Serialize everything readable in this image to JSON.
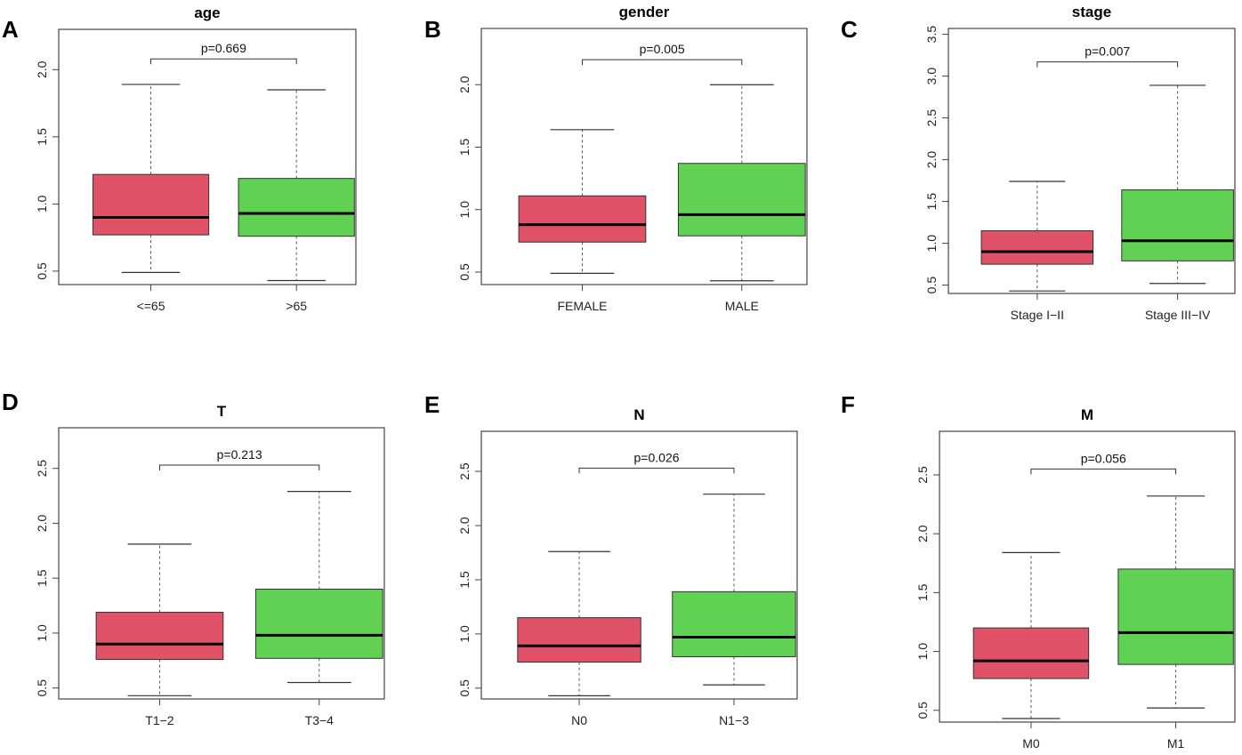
{
  "figure": {
    "colors": {
      "group1": "#df5268",
      "group2": "#61d153",
      "frame": "#444444",
      "median": "#000000",
      "whisker": "#555555"
    }
  },
  "chart_data": [
    {
      "panel": "A",
      "type": "box",
      "title": "age",
      "categories": [
        "<=65",
        ">65"
      ],
      "boxes": [
        {
          "min": 0.49,
          "q1": 0.77,
          "median": 0.9,
          "q3": 1.22,
          "max": 1.89
        },
        {
          "min": 0.43,
          "q1": 0.76,
          "median": 0.93,
          "q3": 1.19,
          "max": 1.85
        }
      ],
      "yticks": [
        "0.5",
        "1.0",
        "1.5",
        "2.0"
      ],
      "ylim": [
        0.4,
        2.3
      ],
      "pvalue_label": "p=0.669",
      "pvalue_bracket_y": 2.08,
      "xlabel": "",
      "ylabel": ""
    },
    {
      "panel": "B",
      "type": "box",
      "title": "gender",
      "categories": [
        "FEMALE",
        "MALE"
      ],
      "boxes": [
        {
          "min": 0.49,
          "q1": 0.74,
          "median": 0.88,
          "q3": 1.11,
          "max": 1.64
        },
        {
          "min": 0.43,
          "q1": 0.79,
          "median": 0.96,
          "q3": 1.37,
          "max": 2.0
        }
      ],
      "yticks": [
        "0.5",
        "1.0",
        "1.5",
        "2.0"
      ],
      "ylim": [
        0.4,
        2.45
      ],
      "pvalue_label": "p=0.005",
      "pvalue_bracket_y": 2.2,
      "xlabel": "",
      "ylabel": ""
    },
    {
      "panel": "C",
      "type": "box",
      "title": "stage",
      "categories": [
        "Stage I−II",
        "Stage III−IV"
      ],
      "boxes": [
        {
          "min": 0.43,
          "q1": 0.75,
          "median": 0.9,
          "q3": 1.15,
          "max": 1.74
        },
        {
          "min": 0.52,
          "q1": 0.79,
          "median": 1.03,
          "q3": 1.64,
          "max": 2.89
        }
      ],
      "yticks": [
        "0.5",
        "1.0",
        "1.5",
        "2.0",
        "2.5",
        "3.0",
        "3.5"
      ],
      "ylim": [
        0.4,
        3.57
      ],
      "pvalue_label": "p=0.007",
      "pvalue_bracket_y": 3.17,
      "xlabel": "",
      "ylabel": ""
    },
    {
      "panel": "D",
      "type": "box",
      "title": "T",
      "categories": [
        "T1−2",
        "T3−4"
      ],
      "boxes": [
        {
          "min": 0.43,
          "q1": 0.76,
          "median": 0.9,
          "q3": 1.19,
          "max": 1.81
        },
        {
          "min": 0.55,
          "q1": 0.77,
          "median": 0.98,
          "q3": 1.4,
          "max": 2.29
        }
      ],
      "yticks": [
        "0.5",
        "1.0",
        "1.5",
        "2.0",
        "2.5"
      ],
      "ylim": [
        0.4,
        2.87
      ],
      "pvalue_label": "p=0.213",
      "pvalue_bracket_y": 2.53,
      "xlabel": "",
      "ylabel": ""
    },
    {
      "panel": "E",
      "type": "box",
      "title": "N",
      "categories": [
        "N0",
        "N1−3"
      ],
      "boxes": [
        {
          "min": 0.43,
          "q1": 0.74,
          "median": 0.89,
          "q3": 1.15,
          "max": 1.76
        },
        {
          "min": 0.53,
          "q1": 0.79,
          "median": 0.97,
          "q3": 1.39,
          "max": 2.29
        }
      ],
      "yticks": [
        "0.5",
        "1.0",
        "1.5",
        "2.0",
        "2.5"
      ],
      "ylim": [
        0.4,
        2.87
      ],
      "pvalue_label": "p=0.026",
      "pvalue_bracket_y": 2.53,
      "xlabel": "",
      "ylabel": ""
    },
    {
      "panel": "F",
      "type": "box",
      "title": "M",
      "categories": [
        "M0",
        "M1"
      ],
      "boxes": [
        {
          "min": 0.43,
          "q1": 0.77,
          "median": 0.92,
          "q3": 1.2,
          "max": 1.84
        },
        {
          "min": 0.52,
          "q1": 0.89,
          "median": 1.16,
          "q3": 1.7,
          "max": 2.32
        }
      ],
      "yticks": [
        "0.5",
        "1.0",
        "1.5",
        "2.0",
        "2.5"
      ],
      "ylim": [
        0.4,
        2.87
      ],
      "pvalue_label": "p=0.056",
      "pvalue_bracket_y": 2.55,
      "xlabel": "",
      "ylabel": ""
    }
  ]
}
